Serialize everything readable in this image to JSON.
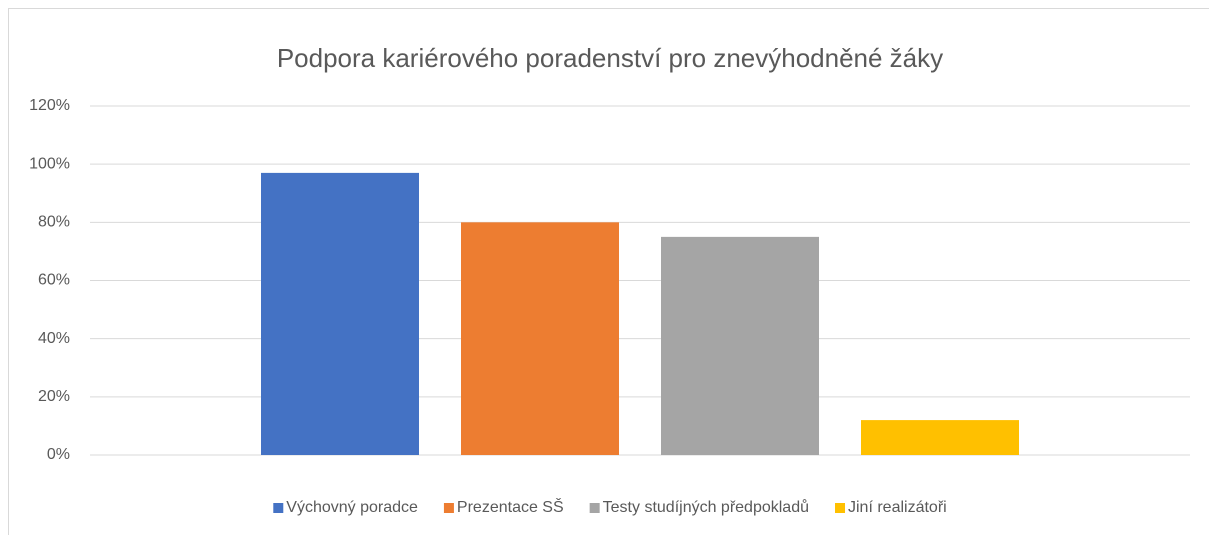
{
  "chart_data": {
    "type": "bar",
    "title": "Podpora kariérového poradenství pro znevýhodněné žáky",
    "categories": [
      null
    ],
    "series": [
      {
        "name": "Výchovný poradce",
        "color": "#4472c4",
        "values": [
          97
        ]
      },
      {
        "name": "Prezentace SŠ",
        "color": "#ed7d31",
        "values": [
          80
        ]
      },
      {
        "name": "Testy studíjných předpokladů",
        "color": "#a5a5a5",
        "values": [
          75
        ]
      },
      {
        "name": "Jiní realizátoři",
        "color": "#ffc000",
        "values": [
          12
        ]
      }
    ],
    "ylim": [
      0,
      120
    ],
    "yticks": [
      {
        "value": 0,
        "label": "0%"
      },
      {
        "value": 20,
        "label": "20%"
      },
      {
        "value": 40,
        "label": "40%"
      },
      {
        "value": 60,
        "label": "60%"
      },
      {
        "value": 80,
        "label": "80%"
      },
      {
        "value": 100,
        "label": "100%"
      },
      {
        "value": 120,
        "label": "120%"
      }
    ],
    "grid": true,
    "legend": "bottom"
  }
}
